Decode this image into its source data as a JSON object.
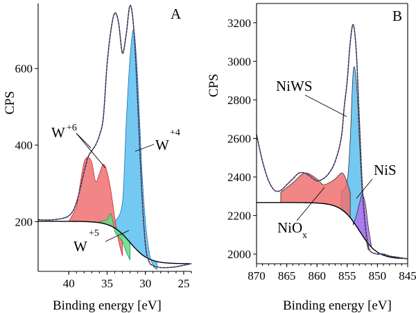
{
  "chart_data": [
    {
      "type": "area",
      "panel_label": "A",
      "xlabel": "Binding energy [eV]",
      "ylabel": "CPS",
      "xlim": [
        44,
        24
      ],
      "ylim": [
        70,
        770
      ],
      "x_reversed": true,
      "xticks": [
        40,
        35,
        30,
        25
      ],
      "yticks": [
        200,
        400,
        600
      ],
      "grid": false,
      "colors": {
        "raw": "#1f7fc0",
        "fit": "#8b0000",
        "background": "#000000",
        "W4": "#5bc0f0",
        "W6": "#f07070",
        "W5": "#60dd88",
        "W4_edge": "#1f6fb0",
        "W6_edge": "#c03030",
        "W5_edge": "#209040"
      },
      "series": [
        {
          "name": "W+4",
          "x": [
            34,
            33,
            32.5,
            32,
            31.5,
            31,
            30.5,
            30,
            29.5,
            29,
            28.5
          ],
          "y": [
            200,
            250,
            460,
            630,
            700,
            570,
            350,
            200,
            120,
            85,
            75
          ]
        },
        {
          "name": "W+6",
          "x": [
            40,
            39,
            38.5,
            38,
            37.5,
            37,
            36.5,
            36,
            35.5,
            35,
            34.5,
            34,
            33.5,
            33
          ],
          "y": [
            200,
            240,
            300,
            355,
            368,
            355,
            305,
            325,
            350,
            330,
            280,
            210,
            150,
            110
          ]
        },
        {
          "name": "W+5",
          "x": [
            36,
            35,
            34.5,
            34,
            33.5,
            33,
            32.5,
            32
          ],
          "y": [
            200,
            205,
            220,
            175,
            160,
            148,
            120,
            100
          ]
        },
        {
          "name": "raw",
          "x": [
            44,
            42,
            40,
            39,
            38,
            37.5,
            37,
            36.5,
            36,
            35.5,
            35,
            34.5,
            34,
            33.5,
            33,
            32.5,
            32,
            31.5,
            31,
            30.5,
            30,
            29.5,
            29,
            28,
            27,
            26,
            25,
            24
          ],
          "y": [
            205,
            205,
            215,
            250,
            330,
            368,
            385,
            400,
            425,
            470,
            610,
            700,
            745,
            720,
            640,
            690,
            765,
            700,
            510,
            290,
            140,
            95,
            85,
            80,
            80,
            82,
            86,
            90
          ]
        }
      ],
      "annotations": [
        {
          "text": "W",
          "sup": "+6"
        },
        {
          "text": "W",
          "sup": "+4"
        },
        {
          "text": "W",
          "sup": "+5"
        }
      ]
    },
    {
      "type": "area",
      "panel_label": "B",
      "xlabel": "Binding energy [eV]",
      "ylabel": "CPS",
      "xlim": [
        870,
        845
      ],
      "ylim": [
        1950,
        3300
      ],
      "x_reversed": true,
      "xticks": [
        870,
        865,
        860,
        855,
        850,
        845
      ],
      "yticks": [
        2000,
        2200,
        2400,
        2600,
        2800,
        3000,
        3200
      ],
      "grid": false,
      "colors": {
        "raw": "#1f7fc0",
        "fit": "#8b0000",
        "background": "#000000",
        "NiWS": "#5bc0f0",
        "NiOx": "#f07070",
        "NiS": "#b070f0"
      },
      "series": [
        {
          "name": "NiWS",
          "x": [
            856,
            855,
            854.5,
            854,
            853.5,
            853,
            852.5,
            852,
            851.5
          ],
          "y": [
            2320,
            2380,
            2600,
            2950,
            2900,
            2600,
            2300,
            2100,
            2020
          ]
        },
        {
          "name": "NiOx",
          "x": [
            866,
            864,
            862,
            860,
            859,
            858,
            857,
            856,
            855.5,
            855,
            854.5
          ],
          "y": [
            2320,
            2370,
            2420,
            2390,
            2360,
            2370,
            2390,
            2420,
            2410,
            2370,
            2320
          ]
        },
        {
          "name": "NiS",
          "x": [
            854,
            853.5,
            853,
            852.5,
            852,
            851.5,
            851
          ],
          "y": [
            2150,
            2200,
            2260,
            2310,
            2260,
            2140,
            2040
          ]
        },
        {
          "name": "raw",
          "x": [
            870,
            869,
            868,
            867,
            866,
            865,
            864,
            863,
            862,
            861,
            860,
            859,
            858,
            857,
            856,
            855.5,
            855,
            854.5,
            854,
            853.5,
            853,
            852.5,
            852,
            851.5,
            851,
            850,
            849,
            848,
            847,
            846,
            845
          ],
          "y": [
            2620,
            2480,
            2380,
            2330,
            2330,
            2360,
            2390,
            2420,
            2420,
            2400,
            2380,
            2390,
            2420,
            2480,
            2600,
            2760,
            2900,
            3100,
            3190,
            3050,
            2700,
            2350,
            2150,
            2040,
            2010,
            2000,
            2000,
            1990,
            1985,
            1980,
            1975
          ]
        }
      ],
      "annotations": [
        {
          "text": "NiWS"
        },
        {
          "text": "NiS"
        },
        {
          "text": "NiO",
          "sub": "x"
        }
      ]
    }
  ]
}
